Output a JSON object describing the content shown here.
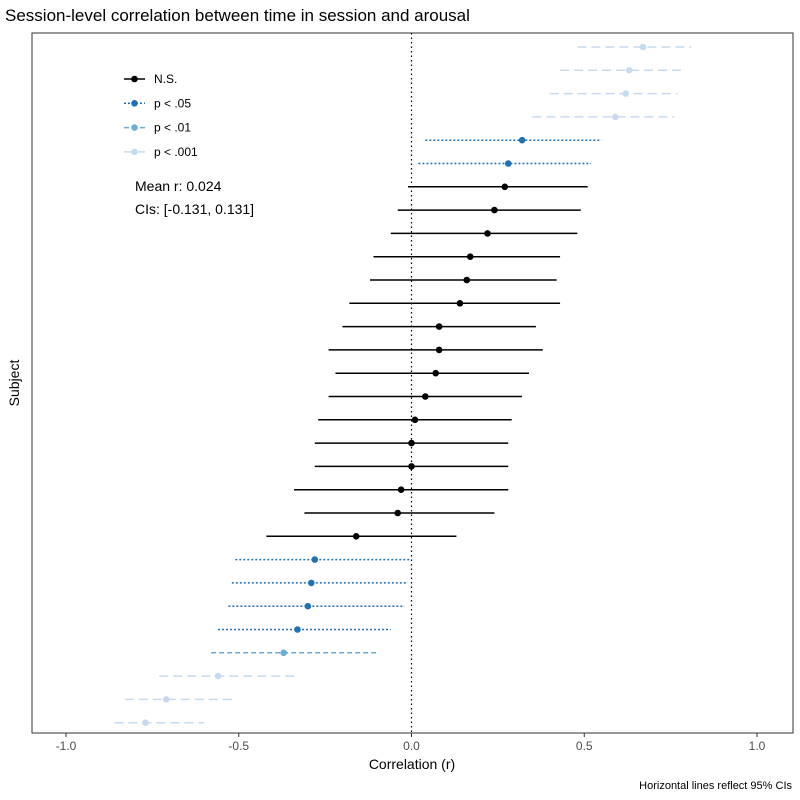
{
  "chart_data": {
    "type": "scatter",
    "title": "Session-level correlation between time in session and arousal",
    "xlabel": "Correlation (r)",
    "ylabel": "Subject",
    "caption": "Horizontal lines reflect 95% CIs",
    "xlim": [
      -1.0,
      1.0
    ],
    "xticks": [
      -1.0,
      -0.5,
      0.0,
      0.5,
      1.0
    ],
    "xtick_labels": [
      "-1.0",
      "-0.5",
      "0.0",
      "0.5",
      "1.0"
    ],
    "reference_line_x": 0,
    "grid": false,
    "legend": {
      "placement": "top-left",
      "entries": [
        {
          "key": "ns",
          "label": "N.S.",
          "color": "#000000",
          "dash": "solid"
        },
        {
          "key": "p05",
          "label": "p < .05",
          "color": "#2171b5",
          "dash": "dotted"
        },
        {
          "key": "p01",
          "label": "p < .01",
          "color": "#6baed6",
          "dash": "dashed"
        },
        {
          "key": "p001",
          "label": "p < .001",
          "color": "#c6dbef",
          "dash": "longdash"
        }
      ]
    },
    "annotation": {
      "mean_line": "Mean r: 0.024",
      "ci_line": "CIs: [-0.131, 0.131]"
    },
    "points": [
      {
        "r": 0.67,
        "lo": 0.48,
        "hi": 0.81,
        "sig": "p001"
      },
      {
        "r": 0.63,
        "lo": 0.43,
        "hi": 0.78,
        "sig": "p001"
      },
      {
        "r": 0.62,
        "lo": 0.4,
        "hi": 0.77,
        "sig": "p001"
      },
      {
        "r": 0.59,
        "lo": 0.35,
        "hi": 0.76,
        "sig": "p001"
      },
      {
        "r": 0.32,
        "lo": 0.04,
        "hi": 0.55,
        "sig": "p05"
      },
      {
        "r": 0.28,
        "lo": 0.02,
        "hi": 0.52,
        "sig": "p05"
      },
      {
        "r": 0.27,
        "lo": -0.01,
        "hi": 0.51,
        "sig": "ns"
      },
      {
        "r": 0.24,
        "lo": -0.04,
        "hi": 0.49,
        "sig": "ns"
      },
      {
        "r": 0.22,
        "lo": -0.06,
        "hi": 0.48,
        "sig": "ns"
      },
      {
        "r": 0.17,
        "lo": -0.11,
        "hi": 0.43,
        "sig": "ns"
      },
      {
        "r": 0.16,
        "lo": -0.12,
        "hi": 0.42,
        "sig": "ns"
      },
      {
        "r": 0.14,
        "lo": -0.18,
        "hi": 0.43,
        "sig": "ns"
      },
      {
        "r": 0.08,
        "lo": -0.2,
        "hi": 0.36,
        "sig": "ns"
      },
      {
        "r": 0.08,
        "lo": -0.24,
        "hi": 0.38,
        "sig": "ns"
      },
      {
        "r": 0.07,
        "lo": -0.22,
        "hi": 0.34,
        "sig": "ns"
      },
      {
        "r": 0.04,
        "lo": -0.24,
        "hi": 0.32,
        "sig": "ns"
      },
      {
        "r": 0.01,
        "lo": -0.27,
        "hi": 0.29,
        "sig": "ns"
      },
      {
        "r": 0.0,
        "lo": -0.28,
        "hi": 0.28,
        "sig": "ns"
      },
      {
        "r": 0.0,
        "lo": -0.28,
        "hi": 0.28,
        "sig": "ns"
      },
      {
        "r": -0.03,
        "lo": -0.34,
        "hi": 0.28,
        "sig": "ns"
      },
      {
        "r": -0.04,
        "lo": -0.31,
        "hi": 0.24,
        "sig": "ns"
      },
      {
        "r": -0.16,
        "lo": -0.42,
        "hi": 0.13,
        "sig": "ns"
      },
      {
        "r": -0.28,
        "lo": -0.51,
        "hi": 0.0,
        "sig": "p05"
      },
      {
        "r": -0.29,
        "lo": -0.52,
        "hi": -0.01,
        "sig": "p05"
      },
      {
        "r": -0.3,
        "lo": -0.53,
        "hi": -0.02,
        "sig": "p05"
      },
      {
        "r": -0.33,
        "lo": -0.56,
        "hi": -0.06,
        "sig": "p05"
      },
      {
        "r": -0.37,
        "lo": -0.58,
        "hi": -0.1,
        "sig": "p01"
      },
      {
        "r": -0.56,
        "lo": -0.73,
        "hi": -0.33,
        "sig": "p001"
      },
      {
        "r": -0.71,
        "lo": -0.83,
        "hi": -0.51,
        "sig": "p001"
      },
      {
        "r": -0.77,
        "lo": -0.86,
        "hi": -0.6,
        "sig": "p001"
      }
    ]
  }
}
